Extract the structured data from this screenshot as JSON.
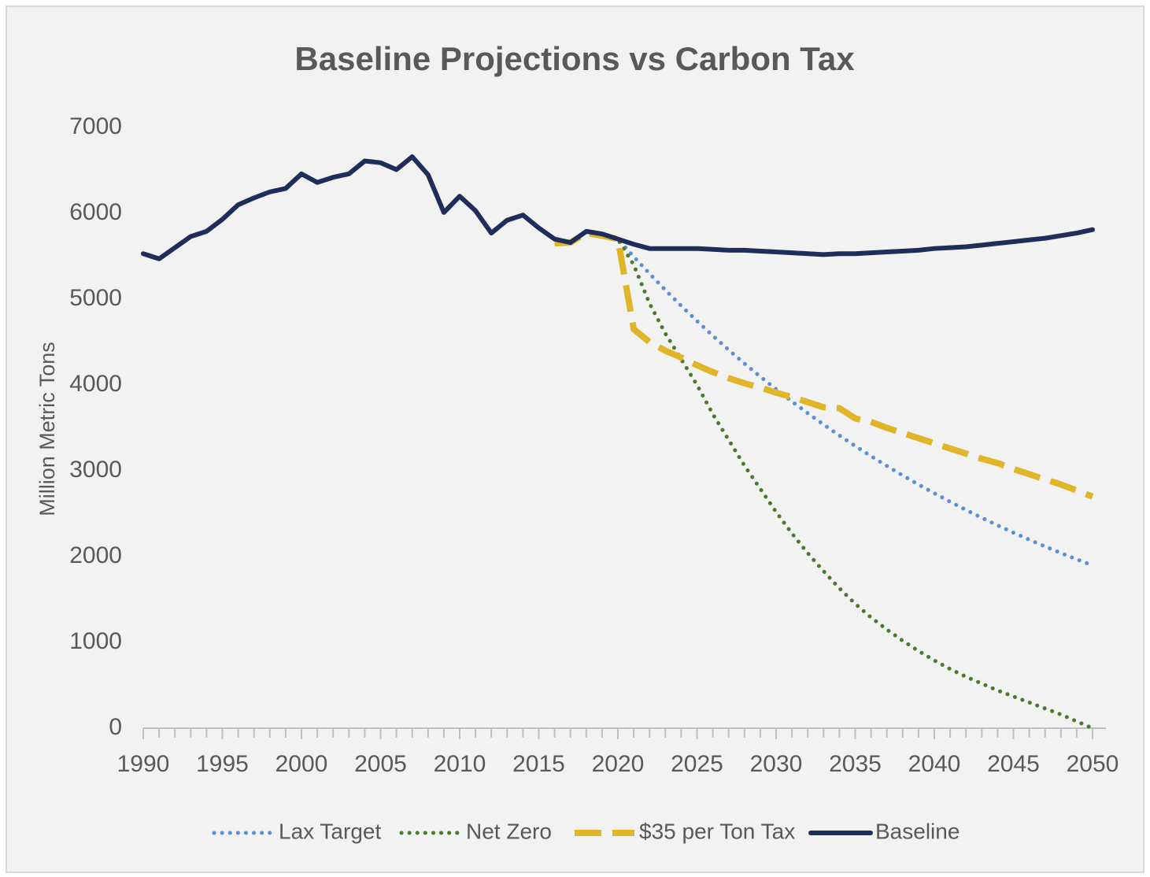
{
  "chart_data": {
    "type": "line",
    "title": "Baseline Projections vs Carbon Tax",
    "y_label": "Million Metric Tons",
    "x": [
      1990,
      1991,
      1992,
      1993,
      1994,
      1995,
      1996,
      1997,
      1998,
      1999,
      2000,
      2001,
      2002,
      2003,
      2004,
      2005,
      2006,
      2007,
      2008,
      2009,
      2010,
      2011,
      2012,
      2013,
      2014,
      2015,
      2016,
      2017,
      2018,
      2019,
      2020,
      2021,
      2022,
      2023,
      2024,
      2025,
      2026,
      2027,
      2028,
      2029,
      2030,
      2031,
      2032,
      2033,
      2034,
      2035,
      2036,
      2037,
      2038,
      2039,
      2040,
      2041,
      2042,
      2043,
      2044,
      2045,
      2046,
      2047,
      2048,
      2049,
      2050
    ],
    "xlim": [
      1990,
      2050
    ],
    "xticks": [
      1990,
      1995,
      2000,
      2005,
      2010,
      2015,
      2020,
      2025,
      2030,
      2035,
      2040,
      2045,
      2050
    ],
    "ylim": [
      0,
      7000
    ],
    "yticks": [
      0,
      1000,
      2000,
      3000,
      4000,
      5000,
      6000,
      7000
    ],
    "grid": false,
    "legend": "bottom",
    "series": [
      {
        "name": "Lax Target",
        "color": "#5b8fd6",
        "style": "dotted",
        "values": [
          null,
          null,
          null,
          null,
          null,
          null,
          null,
          null,
          null,
          null,
          null,
          null,
          null,
          null,
          null,
          null,
          null,
          null,
          null,
          null,
          null,
          null,
          null,
          null,
          null,
          null,
          5700,
          5660,
          5790,
          5760,
          5700,
          5495,
          5297,
          5106,
          4922,
          4745,
          4574,
          4409,
          4250,
          4097,
          3950,
          3808,
          3671,
          3539,
          3411,
          3289,
          3170,
          3056,
          2946,
          2840,
          2738,
          2639,
          2544,
          2452,
          2364,
          2279,
          2197,
          2118,
          2042,
          1968,
          1897
        ]
      },
      {
        "name": "Net Zero",
        "color": "#4a7a2c",
        "style": "dotted",
        "values": [
          null,
          null,
          null,
          null,
          null,
          null,
          null,
          null,
          null,
          null,
          null,
          null,
          null,
          null,
          null,
          null,
          null,
          null,
          null,
          null,
          null,
          null,
          null,
          null,
          null,
          null,
          5700,
          5660,
          5790,
          5760,
          5700,
          5400,
          4950,
          4600,
          4300,
          4000,
          3660,
          3360,
          3060,
          2790,
          2520,
          2270,
          2040,
          1830,
          1630,
          1450,
          1290,
          1150,
          1020,
          900,
          790,
          690,
          600,
          520,
          440,
          370,
          300,
          230,
          160,
          80,
          0
        ]
      },
      {
        "name": "$35 per Ton Tax",
        "color": "#e0b52a",
        "style": "dashed",
        "values": [
          null,
          null,
          null,
          null,
          null,
          null,
          null,
          null,
          null,
          null,
          null,
          null,
          null,
          null,
          null,
          null,
          null,
          null,
          null,
          null,
          null,
          null,
          null,
          null,
          null,
          null,
          5650,
          5660,
          5770,
          5740,
          5700,
          4650,
          4500,
          4400,
          4320,
          4230,
          4150,
          4080,
          4020,
          3970,
          3910,
          3860,
          3800,
          3740,
          3730,
          3610,
          3570,
          3500,
          3440,
          3380,
          3320,
          3260,
          3200,
          3140,
          3090,
          3020,
          2960,
          2900,
          2840,
          2770,
          2700
        ]
      },
      {
        "name": "Baseline",
        "color": "#1f2d5a",
        "style": "solid",
        "values": [
          5530,
          5470,
          5600,
          5730,
          5790,
          5930,
          6100,
          6180,
          6250,
          6290,
          6460,
          6360,
          6420,
          6460,
          6610,
          6590,
          6510,
          6660,
          6450,
          6010,
          6200,
          6030,
          5770,
          5920,
          5980,
          5830,
          5700,
          5660,
          5790,
          5760,
          5700,
          5640,
          5590,
          5590,
          5590,
          5590,
          5580,
          5570,
          5570,
          5560,
          5550,
          5540,
          5530,
          5520,
          5530,
          5530,
          5540,
          5550,
          5560,
          5570,
          5590,
          5600,
          5610,
          5630,
          5650,
          5670,
          5690,
          5710,
          5740,
          5770,
          5810
        ]
      }
    ]
  }
}
